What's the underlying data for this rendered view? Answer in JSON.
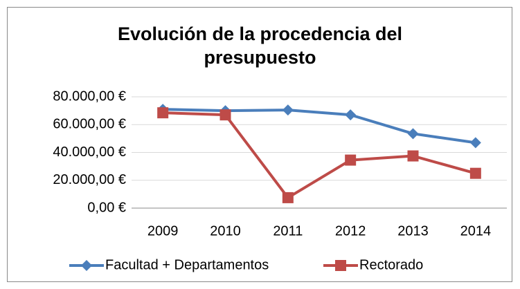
{
  "chart_data": {
    "type": "line",
    "title": "Evolución de la procedencia del presupuesto",
    "categories": [
      "2009",
      "2010",
      "2011",
      "2012",
      "2013",
      "2014"
    ],
    "series": [
      {
        "name": "Facultad + Departamentos",
        "color": "#4a7ebb",
        "marker": "diamond",
        "values": [
          71000,
          70000,
          70500,
          67000,
          53500,
          47000
        ]
      },
      {
        "name": "Rectorado",
        "color": "#be4b48",
        "marker": "square",
        "values": [
          68500,
          67000,
          7500,
          34500,
          37500,
          25000
        ]
      }
    ],
    "ylim": [
      0,
      80000
    ],
    "yticks": [
      {
        "value": 0,
        "label": "0,00 €"
      },
      {
        "value": 20000,
        "label": "20.000,00 €"
      },
      {
        "value": 40000,
        "label": "40.000,00 €"
      },
      {
        "value": 60000,
        "label": "60.000,00 €"
      },
      {
        "value": 80000,
        "label": "80.000,00 €"
      }
    ],
    "grid": true,
    "legend": "bottom"
  }
}
